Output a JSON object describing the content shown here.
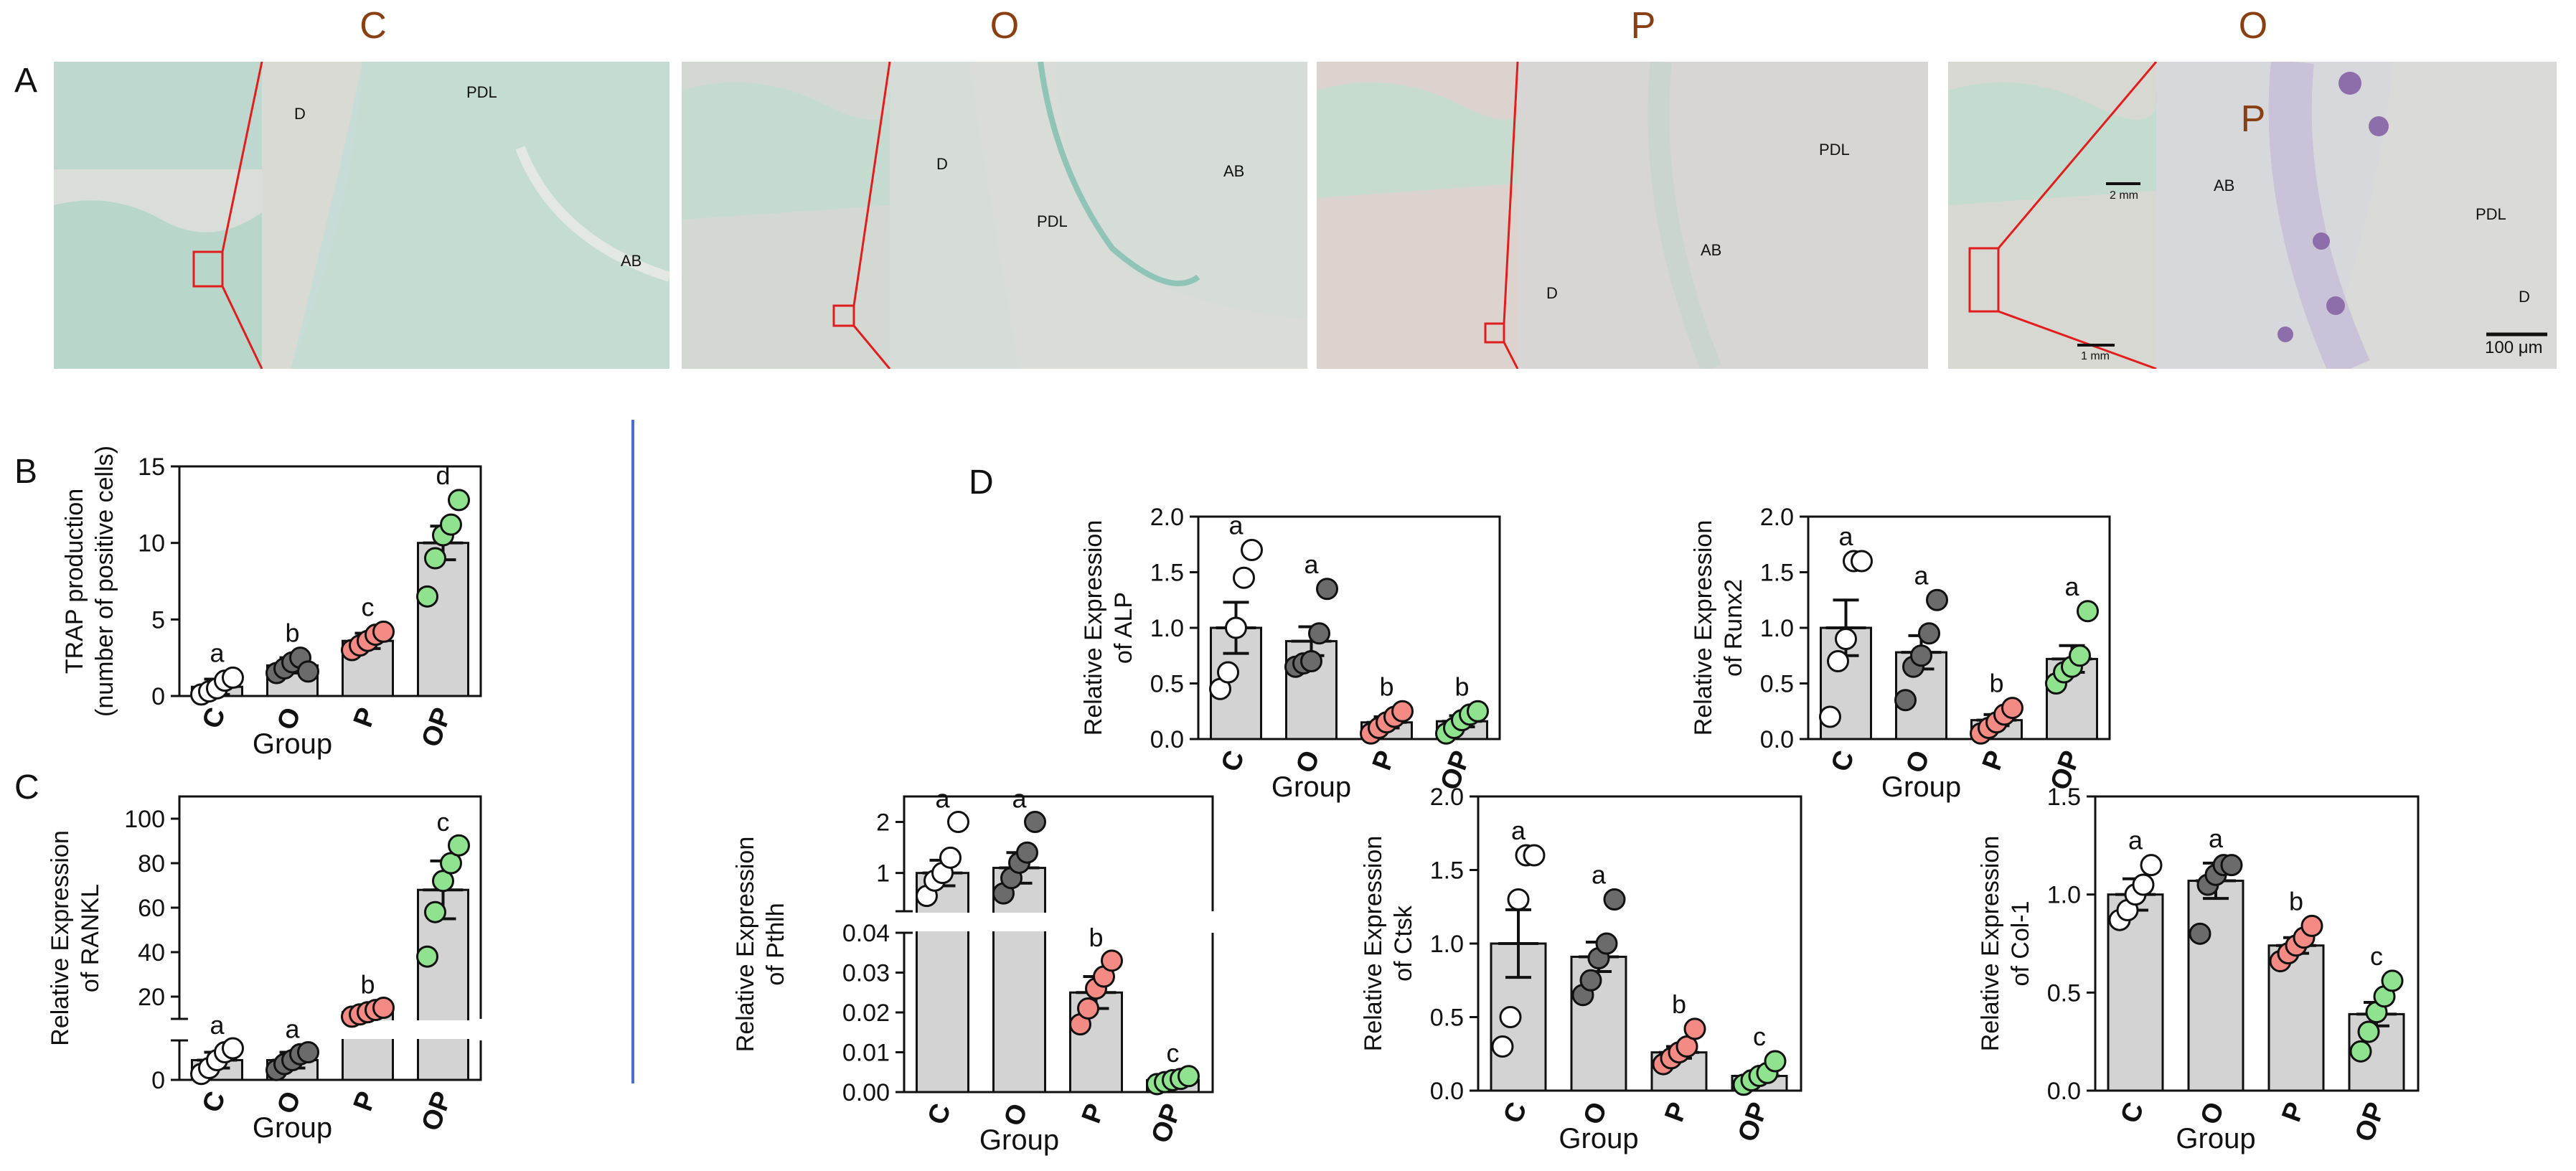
{
  "panels": {
    "A": "A",
    "B": "B",
    "C": "C",
    "D": "D"
  },
  "top_titles": [
    "C",
    "O",
    "P",
    "O"
  ],
  "top_title_second_line": "P",
  "histology": [
    {
      "labels": [
        "D",
        "PDL",
        "AB"
      ],
      "scale_text": ""
    },
    {
      "labels": [
        "D",
        "PDL",
        "AB"
      ],
      "scale_text": ""
    },
    {
      "labels": [
        "PDL",
        "AB",
        "D"
      ],
      "scale_text": ""
    },
    {
      "labels": [
        "AB",
        "PDL",
        "D"
      ],
      "scale_text": "100 μm",
      "inset_scale_top": "2 mm",
      "inset_scale_bottom": "1 mm"
    }
  ],
  "colors": {
    "C": "#ffffff",
    "O": "#6b6b6b",
    "P": "#f48a84",
    "OP": "#8fe38f",
    "bar": "#d3d3d3",
    "line": "#111111",
    "zoom": "#e11d1d",
    "divider": "#4a6fd0",
    "title": "#8a3f12"
  },
  "chart_data": [
    {
      "id": "trap",
      "type": "bar",
      "ylabel": [
        "TRAP production",
        "(number of positive cells)"
      ],
      "xlabel": "Group",
      "categories": [
        "C",
        "O",
        "P",
        "OP"
      ],
      "values": [
        0.6,
        2.0,
        3.6,
        10.0
      ],
      "sem": [
        0.5,
        0.5,
        0.5,
        1.1
      ],
      "letters": [
        "a",
        "b",
        "c",
        "d"
      ],
      "points": [
        [
          0.1,
          0.3,
          0.5,
          1.0,
          1.2
        ],
        [
          1.5,
          1.8,
          2.2,
          2.5,
          1.6
        ],
        [
          3.0,
          3.3,
          3.6,
          4.0,
          4.2
        ],
        [
          6.5,
          9.0,
          10.5,
          11.2,
          12.8
        ]
      ],
      "ylim": [
        0,
        15
      ],
      "yticks": [
        0,
        5,
        10,
        15
      ]
    },
    {
      "id": "rankl",
      "type": "bar",
      "ylabel": [
        "Relative Expression",
        "of RANKL"
      ],
      "xlabel": "Group",
      "categories": [
        "C",
        "O",
        "P",
        "OP"
      ],
      "values": [
        1.0,
        1.0,
        13,
        68
      ],
      "sem": [
        0.4,
        0.4,
        1.5,
        13
      ],
      "letters": [
        "a",
        "a",
        "b",
        "c"
      ],
      "points": [
        [
          0.3,
          0.6,
          1.0,
          1.4,
          1.6
        ],
        [
          0.5,
          0.8,
          1.0,
          1.3,
          1.4
        ],
        [
          11,
          12,
          13,
          14,
          15
        ],
        [
          38,
          58,
          72,
          80,
          88
        ]
      ],
      "yticks_upper": [
        20,
        40,
        60,
        80,
        100
      ],
      "yticks_lower": [
        0
      ]
    },
    {
      "id": "alp",
      "type": "bar",
      "ylabel": [
        "Relative Expression",
        "of ALP"
      ],
      "xlabel": "Group",
      "categories": [
        "C",
        "O",
        "P",
        "OP"
      ],
      "values": [
        1.0,
        0.88,
        0.15,
        0.16
      ],
      "sem": [
        0.23,
        0.13,
        0.05,
        0.05
      ],
      "letters": [
        "a",
        "a",
        "b",
        "b"
      ],
      "points": [
        [
          0.45,
          0.6,
          1.0,
          1.45,
          1.7
        ],
        [
          0.65,
          0.68,
          0.7,
          0.95,
          1.35
        ],
        [
          0.05,
          0.1,
          0.15,
          0.2,
          0.25
        ],
        [
          0.05,
          0.1,
          0.17,
          0.22,
          0.25
        ]
      ],
      "ylim": [
        0,
        2.0
      ],
      "yticks": [
        0.0,
        0.5,
        1.0,
        1.5,
        2.0
      ]
    },
    {
      "id": "runx2",
      "type": "bar",
      "ylabel": [
        "Relative Expression",
        "of Runx2"
      ],
      "xlabel": "Group",
      "categories": [
        "C",
        "O",
        "P",
        "OP"
      ],
      "values": [
        1.0,
        0.78,
        0.17,
        0.72
      ],
      "sem": [
        0.25,
        0.15,
        0.05,
        0.12
      ],
      "letters": [
        "a",
        "a",
        "b",
        "a"
      ],
      "points": [
        [
          0.2,
          0.7,
          0.9,
          1.6,
          1.6
        ],
        [
          0.35,
          0.65,
          0.75,
          0.95,
          1.25
        ],
        [
          0.05,
          0.1,
          0.15,
          0.22,
          0.28
        ],
        [
          0.5,
          0.6,
          0.65,
          0.75,
          1.15
        ]
      ],
      "ylim": [
        0,
        2.0
      ],
      "yticks": [
        0.0,
        0.5,
        1.0,
        1.5,
        2.0
      ]
    },
    {
      "id": "pthlh",
      "type": "bar",
      "ylabel": [
        "Relative Expression",
        "of Pthlh"
      ],
      "xlabel": "Group",
      "categories": [
        "C",
        "O",
        "P",
        "OP"
      ],
      "values": [
        1.0,
        1.1,
        0.025,
        0.003
      ],
      "sem": [
        0.25,
        0.3,
        0.004,
        0.0008
      ],
      "letters": [
        "a",
        "a",
        "b",
        "c"
      ],
      "points": [
        [
          0.55,
          0.85,
          1.0,
          1.3,
          2.0
        ],
        [
          0.6,
          0.9,
          1.2,
          1.4,
          2.0
        ],
        [
          0.017,
          0.021,
          0.026,
          0.029,
          0.033
        ],
        [
          0.002,
          0.0025,
          0.003,
          0.0033,
          0.004
        ]
      ],
      "yticks_upper": [
        1,
        2
      ],
      "yticks_lower": [
        0.0,
        0.01,
        0.02,
        0.03,
        0.04
      ]
    },
    {
      "id": "ctsk",
      "type": "bar",
      "ylabel": [
        "Relative Expression",
        "of Ctsk"
      ],
      "xlabel": "Group",
      "categories": [
        "C",
        "O",
        "P",
        "OP"
      ],
      "values": [
        1.0,
        0.91,
        0.26,
        0.1
      ],
      "sem": [
        0.23,
        0.1,
        0.04,
        0.03
      ],
      "letters": [
        "a",
        "a",
        "b",
        "c"
      ],
      "points": [
        [
          0.3,
          0.5,
          1.3,
          1.6,
          1.6
        ],
        [
          0.65,
          0.75,
          0.9,
          1.0,
          1.3
        ],
        [
          0.18,
          0.22,
          0.26,
          0.3,
          0.42
        ],
        [
          0.04,
          0.07,
          0.1,
          0.12,
          0.2
        ]
      ],
      "ylim": [
        0,
        2.0
      ],
      "yticks": [
        0.0,
        0.5,
        1.0,
        1.5,
        2.0
      ]
    },
    {
      "id": "col1",
      "type": "bar",
      "ylabel": [
        "Relative Expression",
        "of Col-1"
      ],
      "xlabel": "Group",
      "categories": [
        "C",
        "O",
        "P",
        "OP"
      ],
      "values": [
        1.0,
        1.07,
        0.74,
        0.39
      ],
      "sem": [
        0.08,
        0.09,
        0.04,
        0.06
      ],
      "letters": [
        "a",
        "a",
        "b",
        "c"
      ],
      "points": [
        [
          0.87,
          0.92,
          1.0,
          1.05,
          1.15
        ],
        [
          0.8,
          1.05,
          1.1,
          1.15,
          1.15
        ],
        [
          0.66,
          0.7,
          0.74,
          0.78,
          0.84
        ],
        [
          0.2,
          0.3,
          0.4,
          0.48,
          0.56
        ]
      ],
      "ylim": [
        0,
        1.5
      ],
      "yticks": [
        0.0,
        0.5,
        1.0,
        1.5
      ]
    }
  ]
}
